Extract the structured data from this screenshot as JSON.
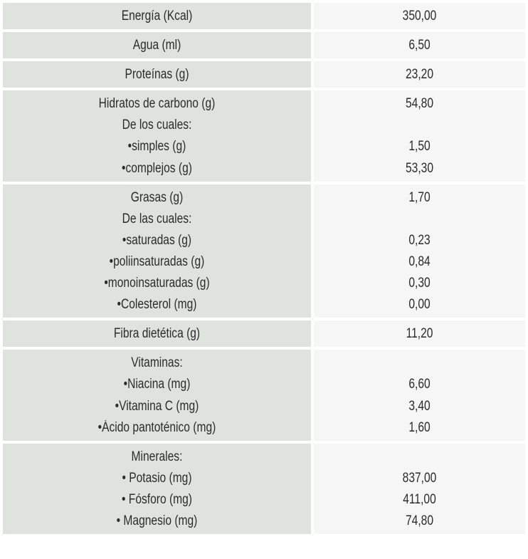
{
  "rows": [
    {
      "left": [
        "Energía (Kcal)"
      ],
      "right": [
        "350,00"
      ]
    },
    {
      "left": [
        "Agua (ml)"
      ],
      "right": [
        "6,50"
      ]
    },
    {
      "left": [
        "Proteínas (g)"
      ],
      "right": [
        "23,20"
      ]
    },
    {
      "left": [
        "Hidratos de carbono (g)",
        "De los cuales:",
        "•simples (g)",
        "•complejos (g)"
      ],
      "right": [
        "54,80",
        "",
        "1,50",
        "53,30"
      ]
    },
    {
      "left": [
        "Grasas (g)",
        "De las cuales:",
        "•saturadas (g)",
        "•poliinsaturadas (g)",
        "•monoinsaturadas (g)",
        "•Colesterol (mg)"
      ],
      "right": [
        "1,70",
        "",
        "0,23",
        "0,84",
        "0,30",
        "0,00"
      ]
    },
    {
      "left": [
        "Fibra dietética (g)"
      ],
      "right": [
        "11,20"
      ]
    },
    {
      "left": [
        "Vitaminas:",
        "•Niacina (mg)",
        "•Vitamina C (mg)",
        "•Ácido pantoténico (mg)"
      ],
      "right": [
        "",
        "6,60",
        "3,40",
        "1,60"
      ]
    },
    {
      "left": [
        "Minerales:",
        "• Potasio (mg)",
        "• Fósforo (mg)",
        "• Magnesio (mg)"
      ],
      "right": [
        "",
        "837,00",
        "411,00",
        "74,80"
      ]
    }
  ]
}
